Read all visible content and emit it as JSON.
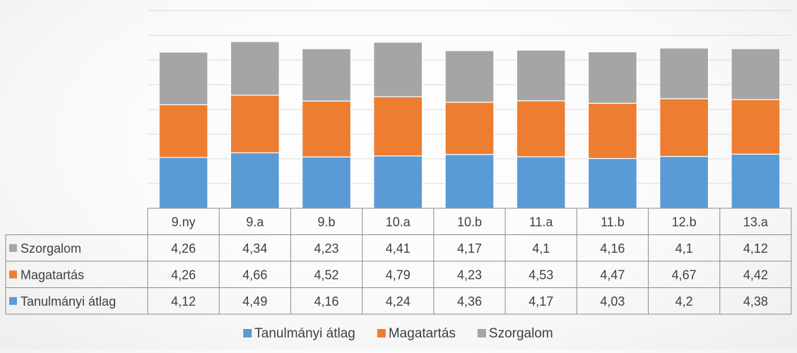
{
  "chart_data": {
    "type": "bar",
    "stacked": true,
    "categories": [
      "9.ny",
      "9.a",
      "9.b",
      "10.a",
      "10.b",
      "11.a",
      "11.b",
      "12.b",
      "13.a"
    ],
    "series": [
      {
        "name": "Tanulmányi átlag",
        "color": "#5b9bd5",
        "values": [
          4.12,
          4.49,
          4.16,
          4.24,
          4.36,
          4.17,
          4.03,
          4.2,
          4.38
        ]
      },
      {
        "name": "Magatartás",
        "color": "#ed7d31",
        "values": [
          4.26,
          4.66,
          4.52,
          4.79,
          4.23,
          4.53,
          4.47,
          4.67,
          4.42
        ]
      },
      {
        "name": "Szorgalom",
        "color": "#a5a5a5",
        "values": [
          4.26,
          4.34,
          4.23,
          4.41,
          4.17,
          4.1,
          4.16,
          4.1,
          4.12
        ]
      }
    ],
    "value_labels": {
      "Szorgalom": [
        "4,26",
        "4,34",
        "4,23",
        "4,41",
        "4,17",
        "4,1",
        "4,16",
        "4,1",
        "4,12"
      ],
      "Magatartás": [
        "4,26",
        "4,66",
        "4,52",
        "4,79",
        "4,23",
        "4,53",
        "4,47",
        "4,67",
        "4,42"
      ],
      "Tanulmányi átlag": [
        "4,12",
        "4,49",
        "4,16",
        "4,24",
        "4,36",
        "4,17",
        "4,03",
        "4,2",
        "4,38"
      ]
    },
    "table_row_order": [
      "Szorgalom",
      "Magatartás",
      "Tanulmányi átlag"
    ],
    "ylim": [
      0,
      16
    ],
    "y_gridline_step": 2,
    "data_table": true,
    "grid": true,
    "legend_position": "bottom"
  }
}
